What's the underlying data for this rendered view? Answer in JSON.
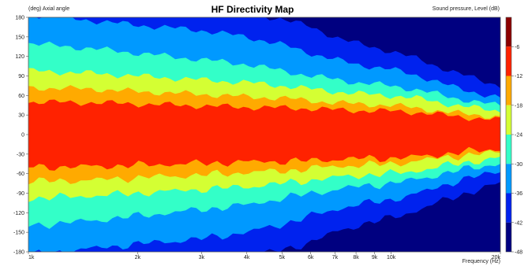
{
  "chart_data": {
    "type": "heatmap",
    "title": "HF Directivity Map",
    "ylabel_top": "(deg)  Axial angle",
    "zlabel": "Sound pressure, Level  (dB)",
    "xlabel": "Frequency  (Hz)",
    "x_scale": "log",
    "xlim": [
      1000,
      20000
    ],
    "ylim": [
      -180,
      180
    ],
    "zlim": [
      -48,
      0
    ],
    "x_ticks": [
      {
        "value": 1000,
        "label": "1k"
      },
      {
        "value": 2000,
        "label": "2k"
      },
      {
        "value": 3000,
        "label": "3k"
      },
      {
        "value": 4000,
        "label": "4k"
      },
      {
        "value": 5000,
        "label": "5k"
      },
      {
        "value": 6000,
        "label": "6k"
      },
      {
        "value": 7000,
        "label": "7k"
      },
      {
        "value": 8000,
        "label": "8k"
      },
      {
        "value": 9000,
        "label": "9k"
      },
      {
        "value": 10000,
        "label": "10k"
      },
      {
        "value": 20000,
        "label": "20k"
      }
    ],
    "y_ticks": [
      180,
      150,
      120,
      90,
      60,
      30,
      0,
      -30,
      -60,
      -90,
      -120,
      -150,
      -180
    ],
    "colorbar_ticks": [
      -6,
      -12,
      -18,
      -24,
      -30,
      -36,
      -42,
      -48
    ],
    "levels": [
      {
        "min": -6,
        "max": 0,
        "color": "#8b0000"
      },
      {
        "min": -12,
        "max": -6,
        "color": "#ff2200"
      },
      {
        "min": -18,
        "max": -12,
        "color": "#ffaa00"
      },
      {
        "min": -24,
        "max": -18,
        "color": "#d4ff33"
      },
      {
        "min": -30,
        "max": -24,
        "color": "#33ffc8"
      },
      {
        "min": -36,
        "max": -30,
        "color": "#0099ff"
      },
      {
        "min": -42,
        "max": -36,
        "color": "#0022ee"
      },
      {
        "min": -48,
        "max": -42,
        "color": "#000080"
      }
    ],
    "contours": {
      "freqs": [
        1000,
        1500,
        2000,
        3000,
        4000,
        5000,
        6000,
        7000,
        8000,
        10000,
        12000,
        15000,
        20000
      ],
      "bounds": [
        {
          "level": -6,
          "angle": [
            50,
            49,
            47,
            44,
            42,
            41,
            40,
            38,
            37,
            36,
            34,
            28,
            22
          ]
        },
        {
          "level": -12,
          "angle": [
            72,
            70,
            66,
            62,
            58,
            56,
            52,
            49,
            47,
            45,
            40,
            33,
            27
          ]
        },
        {
          "level": -18,
          "angle": [
            98,
            94,
            90,
            84,
            80,
            75,
            70,
            66,
            63,
            60,
            55,
            45,
            36
          ]
        },
        {
          "level": -24,
          "angle": [
            140,
            132,
            125,
            115,
            108,
            98,
            90,
            85,
            80,
            75,
            68,
            56,
            44
          ]
        },
        {
          "level": -30,
          "angle": [
            185,
            175,
            168,
            160,
            150,
            138,
            125,
            115,
            108,
            100,
            90,
            72,
            56
          ]
        },
        {
          "level": -36,
          "angle": [
            190,
            190,
            190,
            190,
            185,
            178,
            165,
            150,
            140,
            128,
            115,
            95,
            75
          ]
        },
        {
          "level": -42,
          "angle": [
            190,
            190,
            190,
            190,
            190,
            190,
            190,
            185,
            178,
            170,
            160,
            135,
            110
          ]
        }
      ]
    }
  }
}
